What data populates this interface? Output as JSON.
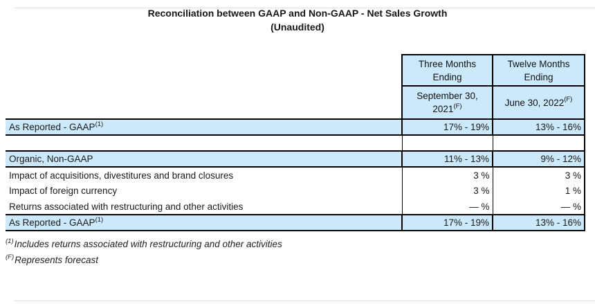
{
  "title": {
    "line1": "Reconciliation between GAAP and Non-GAAP - Net Sales Growth",
    "line2": "(Unaudited)"
  },
  "table": {
    "column_groups": [
      {
        "label": "Three Months Ending"
      },
      {
        "label": "Twelve Months Ending"
      }
    ],
    "periods": [
      {
        "line1": "September 30,",
        "line2": "2021",
        "sup": "(F)"
      },
      {
        "line1": "June 30, 2022",
        "sup": "(F)"
      }
    ],
    "rows": [
      {
        "label": "As Reported - GAAP",
        "sup": "(1)",
        "values": [
          "17% - 19%",
          "13% - 16%"
        ],
        "highlight": true
      },
      {
        "label": "",
        "values": [
          "",
          ""
        ],
        "spacer": true
      },
      {
        "label": "Organic, Non-GAAP",
        "values": [
          "11% - 13%",
          "9% - 12%"
        ],
        "highlight": true
      },
      {
        "label": "Impact of acquisitions, divestitures and brand closures",
        "values": [
          "3 %",
          "3 %"
        ]
      },
      {
        "label": "Impact of foreign currency",
        "values": [
          "3 %",
          "1 %"
        ]
      },
      {
        "label": "Returns associated with restructuring and other activities",
        "values": [
          "— %",
          "— %"
        ]
      },
      {
        "label": "As Reported - GAAP",
        "sup": "(1)",
        "values": [
          "17% - 19%",
          "13% - 16%"
        ],
        "highlight": true
      }
    ]
  },
  "footnotes": [
    {
      "sup": "(1)",
      "text": "Includes returns associated with restructuring and other activities"
    },
    {
      "sup": "(F)",
      "text": "Represents forecast"
    }
  ],
  "colors": {
    "highlight_blue": "#cbe9fa",
    "border_black": "#000000",
    "text": "#1a1a1a",
    "rule_gray": "#e3e1de"
  }
}
